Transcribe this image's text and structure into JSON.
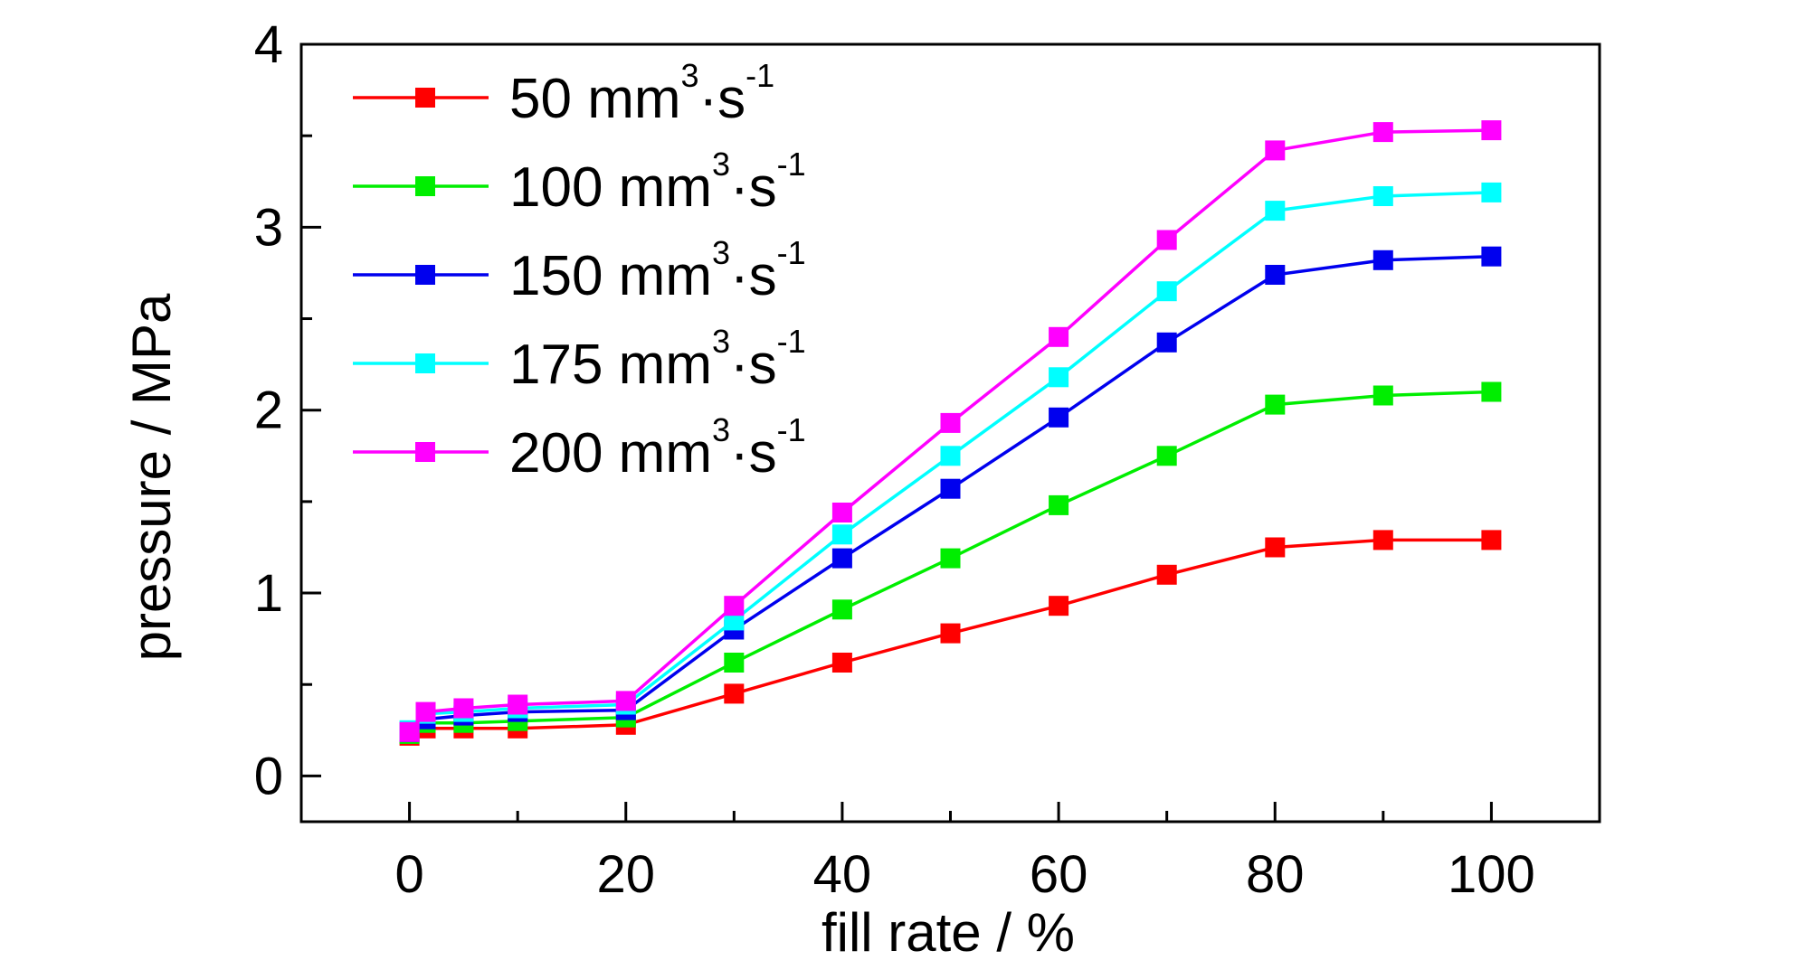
{
  "chart_data": {
    "type": "line",
    "xlabel": "fill rate / %",
    "ylabel": "pressure / MPa",
    "xlim": [
      -10,
      110
    ],
    "ylim": [
      -0.25,
      4
    ],
    "xticks": [
      "0",
      "20",
      "40",
      "60",
      "80",
      "100"
    ],
    "yticks": [
      "0",
      "1",
      "2",
      "3",
      "4"
    ],
    "grid": false,
    "legend_position": "top-left",
    "x": [
      0,
      1.5,
      5,
      10,
      20,
      30,
      40,
      50,
      60,
      70,
      80,
      90,
      100
    ],
    "series": [
      {
        "name_main": "50 mm",
        "name_sup1": "3",
        "name_mid": "·s",
        "name_sup2": "-1",
        "color": "#ff0000",
        "values": [
          0.22,
          0.26,
          0.26,
          0.26,
          0.28,
          0.45,
          0.62,
          0.78,
          0.93,
          1.1,
          1.25,
          1.29,
          1.29
        ]
      },
      {
        "name_main": "100 mm",
        "name_sup1": "3",
        "name_mid": "·s",
        "name_sup2": "-1",
        "color": "#00ee00",
        "values": [
          0.23,
          0.29,
          0.29,
          0.3,
          0.32,
          0.62,
          0.91,
          1.19,
          1.48,
          1.75,
          2.03,
          2.08,
          2.1
        ]
      },
      {
        "name_main": "150 mm",
        "name_sup1": "3",
        "name_mid": "·s",
        "name_sup2": "-1",
        "color": "#0000ee",
        "values": [
          0.24,
          0.31,
          0.33,
          0.35,
          0.36,
          0.8,
          1.19,
          1.57,
          1.96,
          2.37,
          2.74,
          2.82,
          2.84
        ]
      },
      {
        "name_main": "175 mm",
        "name_sup1": "3",
        "name_mid": "·s",
        "name_sup2": "-1",
        "color": "#00ffff",
        "values": [
          0.25,
          0.34,
          0.35,
          0.37,
          0.39,
          0.85,
          1.32,
          1.75,
          2.18,
          2.65,
          3.09,
          3.17,
          3.19
        ]
      },
      {
        "name_main": "200 mm",
        "name_sup1": "3",
        "name_mid": "·s",
        "name_sup2": "-1",
        "color": "#ff00ff",
        "values": [
          0.24,
          0.35,
          0.37,
          0.39,
          0.41,
          0.93,
          1.44,
          1.93,
          2.4,
          2.93,
          3.42,
          3.52,
          3.53
        ]
      }
    ]
  }
}
